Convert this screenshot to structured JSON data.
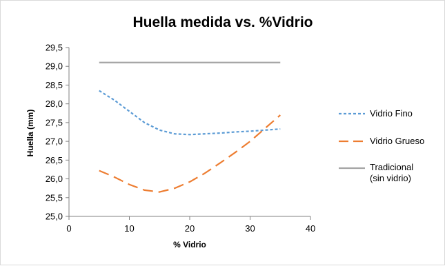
{
  "chart_data": {
    "type": "line",
    "title": "Huella medida vs. %Vidrio",
    "xlabel": "% Vidrio",
    "ylabel": "Huella (mm)",
    "xlim": [
      0,
      40
    ],
    "ylim": [
      25.0,
      29.5
    ],
    "xticks": [
      "0",
      "10",
      "20",
      "30",
      "40"
    ],
    "yticks": [
      "25,0",
      "25,5",
      "26,0",
      "26,5",
      "27,0",
      "27,5",
      "28,0",
      "28,5",
      "29,0",
      "29,5"
    ],
    "grid": false,
    "legend": "right",
    "series": [
      {
        "name": "Vidrio Fino",
        "color": "#5b9bd5",
        "style": "dotted",
        "points": [
          [
            5,
            28.35
          ],
          [
            7.5,
            28.1
          ],
          [
            10,
            27.8
          ],
          [
            12.5,
            27.5
          ],
          [
            15,
            27.3
          ],
          [
            17.5,
            27.2
          ],
          [
            20,
            27.18
          ],
          [
            22.5,
            27.2
          ],
          [
            25,
            27.22
          ],
          [
            27.5,
            27.25
          ],
          [
            30,
            27.27
          ],
          [
            32.5,
            27.3
          ],
          [
            35,
            27.33
          ]
        ]
      },
      {
        "name": "Vidrio Grueso",
        "color": "#ed7d31",
        "style": "dashed",
        "points": [
          [
            5,
            26.22
          ],
          [
            7.5,
            26.05
          ],
          [
            10,
            25.85
          ],
          [
            12.5,
            25.7
          ],
          [
            15,
            25.65
          ],
          [
            17.5,
            25.75
          ],
          [
            20,
            25.92
          ],
          [
            22.5,
            26.15
          ],
          [
            25,
            26.42
          ],
          [
            27.5,
            26.7
          ],
          [
            30,
            27.0
          ],
          [
            32.5,
            27.35
          ],
          [
            35,
            27.7
          ]
        ]
      },
      {
        "name": "Tradicional\n(sin vidrio)",
        "color": "#a5a5a5",
        "style": "solid",
        "points": [
          [
            5,
            29.1
          ],
          [
            35,
            29.1
          ]
        ]
      }
    ]
  }
}
